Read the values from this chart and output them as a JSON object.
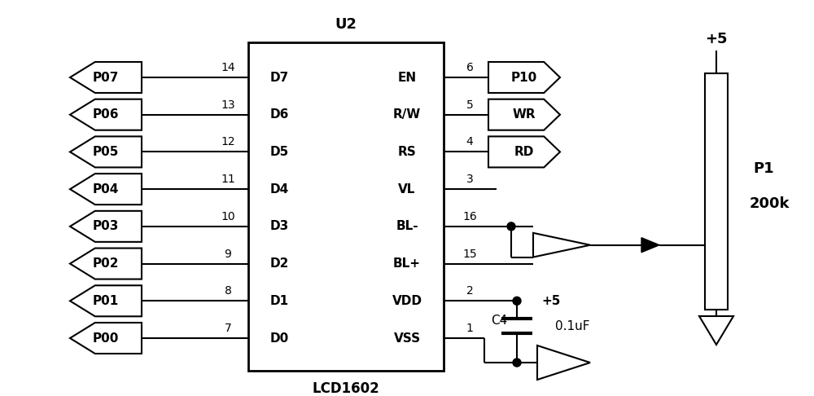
{
  "bg_color": "#ffffff",
  "line_color": "#000000",
  "lw": 1.5,
  "left_ports": [
    "P07",
    "P06",
    "P05",
    "P04",
    "P03",
    "P02",
    "P01",
    "P00"
  ],
  "left_pin_numbers": [
    14,
    13,
    12,
    11,
    10,
    9,
    8,
    7
  ],
  "left_pin_labels": [
    "D7",
    "D6",
    "D5",
    "D4",
    "D3",
    "D2",
    "D1",
    "D0"
  ],
  "right_pin_labels": [
    "EN",
    "R/W",
    "RS",
    "VL",
    "BL-",
    "BL+",
    "VDD",
    "VSS"
  ],
  "right_pin_numbers": [
    6,
    5,
    4,
    3,
    16,
    15,
    2,
    1
  ],
  "right_ports_top": [
    "P10",
    "WR",
    "RD"
  ],
  "ic_label_top": "U2",
  "ic_label_bottom": "LCD1602",
  "res_label1": "P1",
  "res_label2": "200k",
  "cap_label": "C4",
  "cap_value": "0.1uF",
  "vcc_label": "+5"
}
